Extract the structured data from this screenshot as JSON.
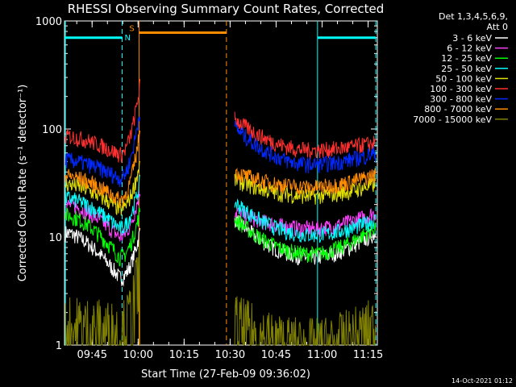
{
  "chart_data": {
    "type": "line",
    "title": "RHESSI Observing Summary Count Rates, Corrected",
    "xlabel": "Start Time (27-Feb-09 09:36:02)",
    "ylabel": "Corrected Count Rate (s⁻¹ detector⁻¹)",
    "yscale": "log",
    "ylim": [
      1,
      1000
    ],
    "xlim_minutes_after_0936": [
      0,
      102
    ],
    "x_ticks": [
      {
        "label": "09:45",
        "min": 9
      },
      {
        "label": "10:00",
        "min": 24
      },
      {
        "label": "10:15",
        "min": 39
      },
      {
        "label": "10:30",
        "min": 54
      },
      {
        "label": "10:45",
        "min": 69
      },
      {
        "label": "11:00",
        "min": 84
      },
      {
        "label": "11:15",
        "min": 99
      }
    ],
    "y_ticks": [
      {
        "label": "1",
        "value": 1
      },
      {
        "label": "10",
        "value": 10
      },
      {
        "label": "100",
        "value": 100
      },
      {
        "label": "1000",
        "value": 1000
      }
    ],
    "legend_header": [
      "Det 1,3,4,5,6,9,",
      "Att 0"
    ],
    "legend_placement": "right",
    "series": [
      {
        "name": "3 - 6 keV",
        "color": "#ffffff",
        "a": 11,
        "p": 4.2,
        "b": 15,
        "m": 6.5,
        "e": 11
      },
      {
        "name": "6 - 12 keV",
        "color": "#ff40ff",
        "a": 20,
        "p": 10,
        "b": 17.5,
        "m": 12,
        "e": 17
      },
      {
        "name": "12 - 25 keV",
        "color": "#00ff00",
        "a": 16,
        "p": 6.5,
        "b": 15,
        "m": 7,
        "e": 12.5
      },
      {
        "name": "25 - 50 keV",
        "color": "#00ffff",
        "a": 23,
        "p": 12,
        "b": 21,
        "m": 10.5,
        "e": 14.5
      },
      {
        "name": "50 - 100 keV",
        "color": "#e0e000",
        "a": 31,
        "p": 18,
        "b": 34,
        "m": 24,
        "e": 31
      },
      {
        "name": "100 - 300 keV",
        "color": "#ff3030",
        "a": 86,
        "p": 58,
        "b": 125,
        "m": 64,
        "e": 75
      },
      {
        "name": "300 - 800 keV",
        "color": "#0028ff",
        "a": 52,
        "p": 35,
        "b": 104,
        "m": 47,
        "e": 60
      },
      {
        "name": "800 - 7000 keV",
        "color": "#ff8c00",
        "a": 37,
        "p": 22,
        "b": 40,
        "m": 29,
        "e": 38
      },
      {
        "name": "7000 - 15000 keV",
        "color": "#808000",
        "a": 1.6,
        "p": 1.4,
        "b": 1.7,
        "m": 1.0,
        "e": 1.6
      }
    ],
    "orbit_segments": {
      "data_start_min": 0.3,
      "eclipse_start_min": 21.5,
      "eclipse_end_min": 55.5,
      "flare_peak_min": 24.5,
      "data_end_min": 101.5
    },
    "flags": [
      {
        "label": "N",
        "color": "#00ffff",
        "from_min": 0,
        "to_min": 18.8,
        "level": 700
      },
      {
        "label": "S",
        "color": "#ff8c00",
        "from_min": 24.3,
        "to_min": 52.8,
        "level": 780
      },
      {
        "label": "",
        "color": "#00ffff",
        "from_min": 82.5,
        "to_min": 101.5,
        "level": 700
      }
    ],
    "vertical_markers": [
      {
        "min": 0.3,
        "color": "#00ffff",
        "style": "solid"
      },
      {
        "min": 18.8,
        "color": "#00ffff",
        "style": "dashed"
      },
      {
        "min": 24.3,
        "color": "#ff8c00",
        "style": "solid"
      },
      {
        "min": 52.8,
        "color": "#ff8c00",
        "style": "dashed"
      },
      {
        "min": 82.5,
        "color": "#00ffff",
        "style": "solid"
      },
      {
        "min": 101.5,
        "color": "#00ffff",
        "style": "dashed"
      }
    ],
    "grid": false
  },
  "footer": {
    "timestamp": "14-Oct-2021 01:12"
  }
}
